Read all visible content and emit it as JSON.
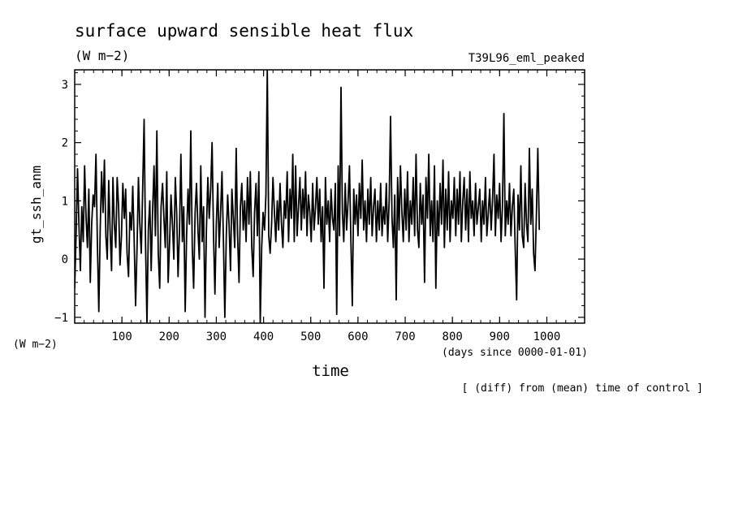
{
  "chart_data": {
    "type": "line",
    "title": "surface upward sensible heat flux",
    "units_label": "(W m−2)",
    "run_label": "T39L96_eml_peaked",
    "ylabel": "gt_ssh_anm",
    "yunits_label": "(W m−2)",
    "xlabel": "time",
    "xunits_label": "(days since 0000-01-01)",
    "note": "[ (diff) from (mean) time of control ]",
    "xlim": [
      0,
      1080
    ],
    "ylim": [
      -1.1,
      3.25
    ],
    "x_ticks": [
      100,
      200,
      300,
      400,
      500,
      600,
      700,
      800,
      900,
      1000
    ],
    "x_tick_labels": [
      "100",
      "200",
      "300",
      "400",
      "500",
      "600",
      "700",
      "800",
      "900",
      "1000"
    ],
    "y_ticks": [
      -1,
      0,
      1,
      2,
      3
    ],
    "y_tick_labels": [
      "−1",
      "0",
      "1",
      "2",
      "3"
    ],
    "grid": false,
    "series": [
      {
        "x_start": 0,
        "x_step": 3,
        "values": [
          -0.5,
          0.4,
          1.55,
          0.6,
          -0.2,
          0.9,
          0.3,
          1.6,
          0.7,
          0.2,
          1.2,
          -0.4,
          0.6,
          1.1,
          0.9,
          1.8,
          0.3,
          -0.9,
          0.5,
          1.5,
          0.8,
          1.7,
          0.4,
          0.0,
          1.35,
          0.5,
          -0.2,
          1.4,
          0.6,
          0.2,
          1.4,
          0.9,
          -0.1,
          0.4,
          1.3,
          0.7,
          1.2,
          0.1,
          -0.3,
          0.8,
          0.5,
          1.25,
          0.3,
          -0.8,
          0.2,
          1.4,
          0.6,
          0.1,
          1.2,
          2.4,
          0.3,
          -1.1,
          0.5,
          1.0,
          -0.2,
          0.8,
          1.6,
          0.4,
          2.2,
          0.1,
          -0.5,
          0.9,
          1.3,
          0.7,
          0.2,
          1.5,
          -0.4,
          0.3,
          1.1,
          0.6,
          0.0,
          1.4,
          0.8,
          -0.3,
          0.5,
          1.8,
          0.3,
          0.9,
          -0.9,
          0.4,
          1.2,
          0.6,
          2.2,
          0.2,
          -0.5,
          0.8,
          1.3,
          0.5,
          0.0,
          1.6,
          0.3,
          0.9,
          -1.0,
          0.5,
          1.4,
          0.7,
          1.2,
          2.0,
          0.4,
          -0.6,
          0.6,
          1.3,
          0.2,
          0.8,
          1.5,
          0.3,
          -1.0,
          0.4,
          1.1,
          0.6,
          -0.2,
          1.2,
          0.7,
          0.2,
          1.9,
          0.4,
          -0.4,
          0.9,
          1.3,
          0.5,
          1.0,
          0.3,
          1.4,
          0.6,
          1.5,
          0.2,
          -0.3,
          0.8,
          1.3,
          0.4,
          1.5,
          -1.1,
          0.2,
          0.8,
          0.5,
          1.1,
          3.25,
          0.4,
          0.1,
          0.6,
          1.4,
          0.8,
          0.3,
          1.0,
          0.5,
          1.3,
          0.6,
          0.2,
          1.0,
          0.7,
          1.5,
          0.3,
          1.2,
          0.7,
          1.8,
          0.3,
          1.6,
          0.4,
          0.9,
          1.4,
          0.5,
          1.2,
          0.7,
          1.5,
          0.4,
          1.1,
          0.8,
          0.3,
          1.3,
          0.5,
          0.9,
          1.4,
          0.6,
          1.2,
          0.3,
          0.9,
          -0.5,
          1.4,
          0.6,
          1.0,
          0.3,
          1.2,
          0.7,
          0.5,
          1.3,
          -0.95,
          1.6,
          0.4,
          2.95,
          0.8,
          0.3,
          1.3,
          0.5,
          1.0,
          1.6,
          0.3,
          -0.8,
          1.2,
          0.6,
          1.1,
          0.4,
          1.3,
          0.7,
          1.7,
          0.5,
          1.0,
          0.3,
          1.2,
          0.6,
          1.4,
          0.4,
          0.9,
          1.2,
          0.3,
          1.0,
          0.5,
          1.3,
          0.4,
          0.9,
          0.6,
          1.3,
          0.3,
          1.0,
          2.45,
          0.7,
          0.2,
          1.1,
          -0.7,
          1.4,
          0.5,
          1.6,
          0.8,
          0.3,
          1.2,
          0.5,
          1.5,
          0.3,
          1.0,
          0.6,
          1.4,
          0.4,
          1.8,
          0.5,
          0.2,
          1.3,
          0.6,
          1.1,
          -0.4,
          1.4,
          0.7,
          1.8,
          0.4,
          1.0,
          0.3,
          1.6,
          -0.5,
          1.0,
          0.4,
          1.3,
          0.6,
          1.7,
          0.2,
          1.2,
          0.5,
          1.5,
          0.3,
          1.0,
          0.7,
          1.4,
          0.4,
          1.2,
          0.6,
          1.5,
          0.3,
          1.0,
          1.4,
          0.5,
          1.2,
          0.3,
          1.5,
          0.7,
          1.0,
          0.4,
          1.3,
          0.6,
          0.9,
          1.2,
          0.3,
          1.0,
          0.6,
          1.4,
          0.4,
          0.8,
          1.2,
          0.5,
          1.0,
          1.8,
          0.4,
          1.1,
          0.7,
          1.3,
          0.3,
          0.9,
          2.5,
          0.4,
          1.0,
          0.6,
          1.3,
          0.4,
          0.9,
          1.2,
          0.2,
          -0.7,
          1.1,
          0.5,
          1.6,
          0.4,
          0.2,
          1.3,
          0.6,
          0.3,
          1.9,
          0.6,
          1.2,
          0.1,
          -0.2,
          0.8,
          1.9,
          0.5
        ]
      }
    ],
    "colors": {
      "line": "#000000",
      "background": "#ffffff"
    }
  }
}
